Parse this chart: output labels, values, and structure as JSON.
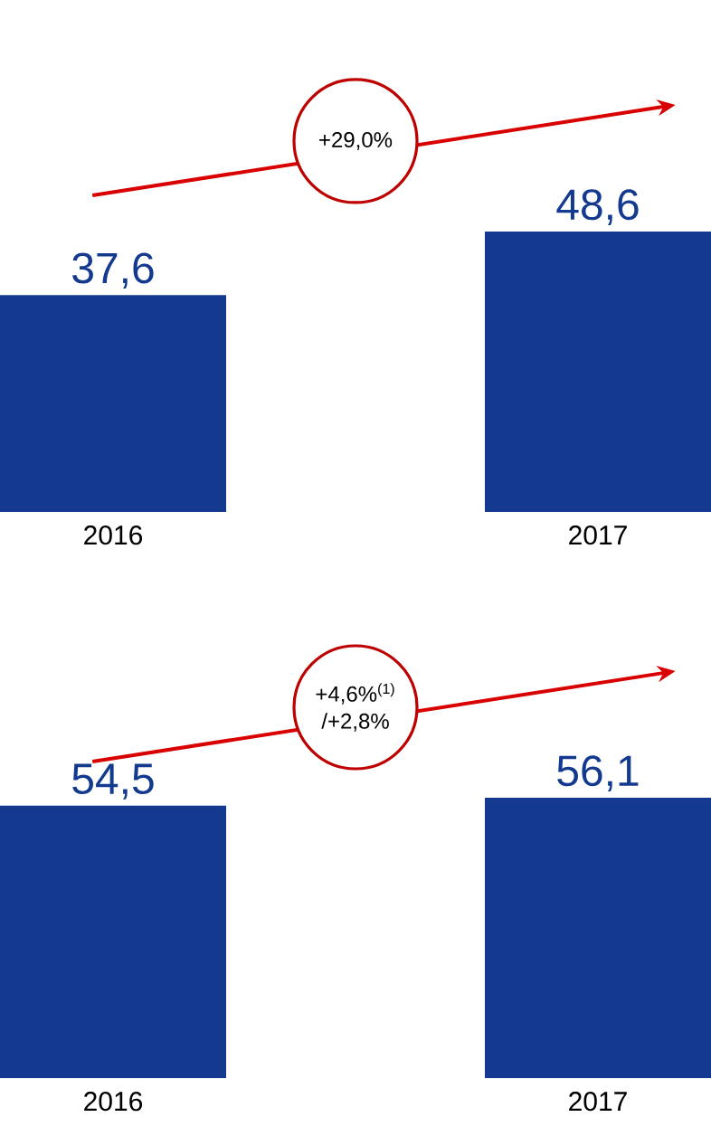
{
  "chart_data": [
    {
      "type": "bar",
      "categories": [
        "2016",
        "2017"
      ],
      "values": [
        37.6,
        48.6
      ],
      "value_labels": [
        "37,6",
        "48,6"
      ],
      "color": "#133a8e",
      "annotations": [
        "+29,0%"
      ]
    },
    {
      "type": "bar",
      "categories": [
        "2016",
        "2017"
      ],
      "values": [
        54.5,
        56.1
      ],
      "value_labels": [
        "54,5",
        "56,1"
      ],
      "color": "#133a8e",
      "annotations": [
        "+4,6%$^{(1)}$",
        "/+2,8%"
      ]
    }
  ]
}
